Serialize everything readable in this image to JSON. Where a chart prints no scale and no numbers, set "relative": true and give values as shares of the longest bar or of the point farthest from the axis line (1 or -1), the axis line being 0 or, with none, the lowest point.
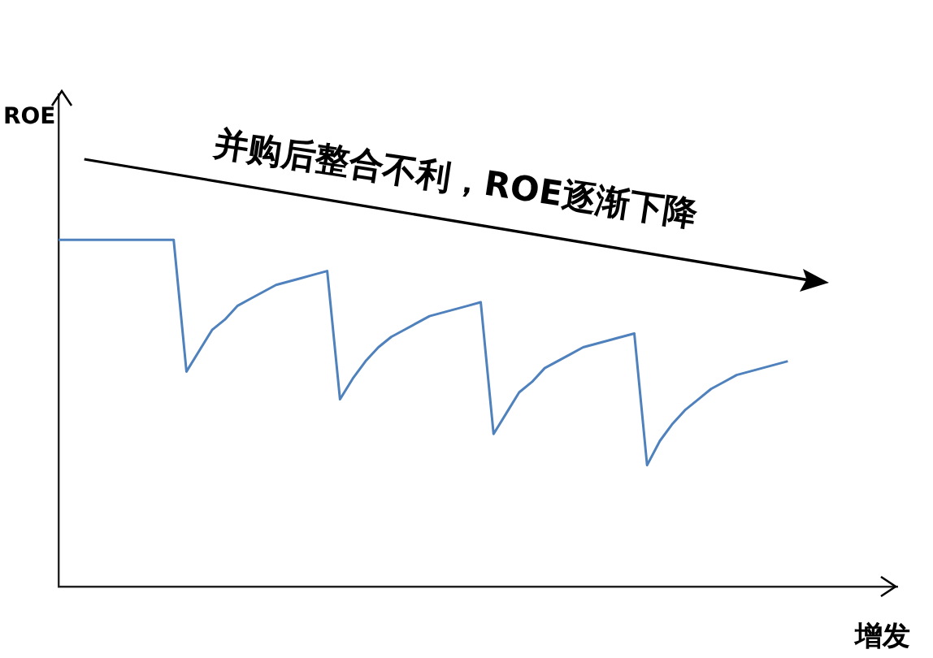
{
  "chart_data": {
    "type": "line",
    "relative": true,
    "xlabel": "增发",
    "ylabel": "ROE",
    "annotations": [
      "并购后整合不利，ROE逐渐下降"
    ],
    "grid": false,
    "legend": false,
    "marker": "none",
    "line_style": "solid",
    "categories": [
      null,
      null,
      null,
      null,
      null,
      null,
      null,
      null,
      null,
      null,
      null,
      null,
      null,
      null,
      null,
      null,
      null,
      null,
      null,
      null,
      null,
      null,
      null,
      null,
      null,
      null,
      null,
      null,
      null,
      null,
      null,
      null,
      null,
      null,
      null,
      null,
      null,
      null,
      null,
      null,
      null,
      null,
      null,
      null,
      null,
      null,
      null,
      null,
      null,
      null,
      null,
      null,
      null,
      null,
      null,
      null,
      null,
      null
    ],
    "series": [
      {
        "color": "#4f81bd",
        "values": [
          1,
          1,
          1,
          1,
          1,
          1,
          1,
          1,
          1,
          1,
          0.62,
          0.68,
          0.74,
          0.77,
          0.81,
          0.83,
          0.85,
          0.87,
          0.88,
          0.89,
          0.9,
          0.91,
          0.54,
          0.6,
          0.65,
          0.69,
          0.72,
          0.74,
          0.76,
          0.78,
          0.79,
          0.8,
          0.81,
          0.82,
          0.44,
          0.5,
          0.56,
          0.59,
          0.63,
          0.65,
          0.67,
          0.69,
          0.7,
          0.71,
          0.72,
          0.73,
          0.35,
          0.42,
          0.47,
          0.51,
          0.54,
          0.57,
          0.59,
          0.61,
          0.62,
          0.63,
          0.64,
          0.65
        ]
      }
    ]
  }
}
